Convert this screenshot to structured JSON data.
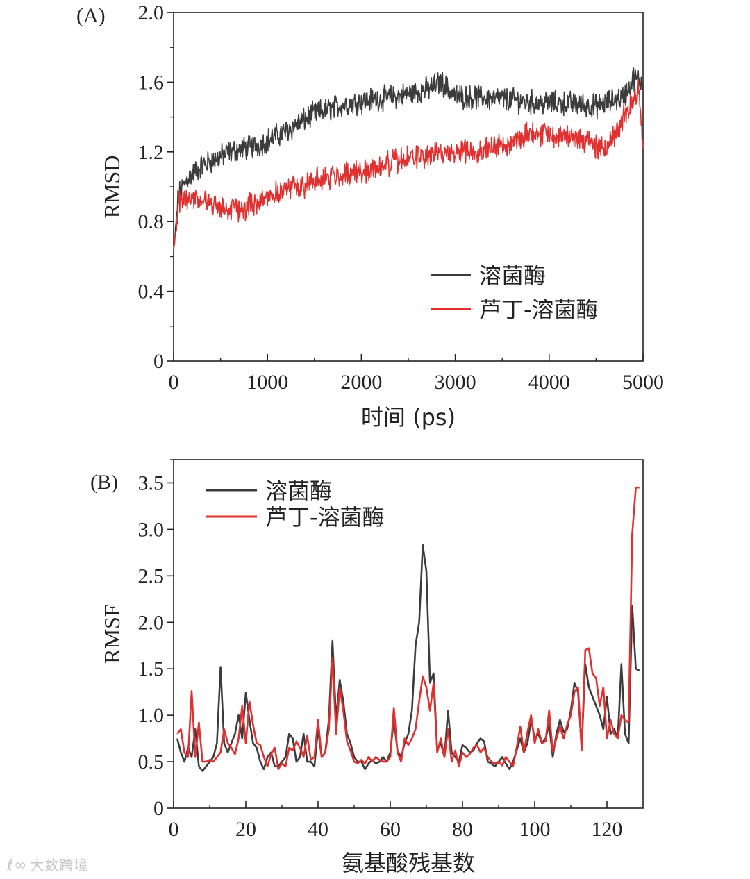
{
  "colors": {
    "black_series": "#3c3c3c",
    "red_series": "#e03030",
    "axis": "#222222"
  },
  "chart_data": [
    {
      "panel": "(A)",
      "type": "line",
      "xlabel": "时间 (ps)",
      "ylabel": "RMSD",
      "xlim": [
        0,
        5000
      ],
      "ylim": [
        0,
        2.0
      ],
      "xticks": [
        0,
        1000,
        2000,
        3000,
        4000,
        5000
      ],
      "xtick_labels": [
        "0",
        "1000",
        "2000",
        "3000",
        "4000",
        "5000"
      ],
      "yticks": [
        0,
        0.4,
        0.8,
        1.2,
        1.6,
        2.0
      ],
      "ytick_labels": [
        "0",
        "0.4",
        "0.8",
        "1.2",
        "1.6",
        "2.0"
      ],
      "legend_position": "lower-right",
      "series": [
        {
          "name": "溶菌酶",
          "color": "#3c3c3c",
          "trend_x": [
            0,
            50,
            150,
            300,
            600,
            900,
            1200,
            1500,
            1800,
            2100,
            2400,
            2700,
            2850,
            3000,
            3300,
            3600,
            3900,
            4200,
            4500,
            4800,
            4900,
            5000
          ],
          "trend_y": [
            0.62,
            0.95,
            1.05,
            1.12,
            1.2,
            1.24,
            1.32,
            1.42,
            1.47,
            1.5,
            1.52,
            1.56,
            1.6,
            1.52,
            1.51,
            1.5,
            1.48,
            1.48,
            1.46,
            1.52,
            1.62,
            1.6
          ],
          "noise": 0.055
        },
        {
          "name": "芦丁-溶菌酶",
          "color": "#e03030",
          "trend_x": [
            0,
            50,
            150,
            300,
            500,
            750,
            1000,
            1300,
            1600,
            1900,
            2100,
            2400,
            2700,
            3000,
            3300,
            3600,
            3800,
            4000,
            4300,
            4600,
            4850,
            4950,
            5000
          ],
          "trend_y": [
            0.62,
            0.9,
            0.95,
            0.92,
            0.88,
            0.87,
            0.95,
            1.0,
            1.05,
            1.08,
            1.1,
            1.15,
            1.18,
            1.2,
            1.22,
            1.25,
            1.32,
            1.3,
            1.28,
            1.22,
            1.45,
            1.55,
            1.2
          ],
          "noise": 0.055
        }
      ]
    },
    {
      "panel": "(B)",
      "type": "line",
      "xlabel": "氨基酸残基数",
      "ylabel": "RMSF",
      "xlim": [
        0,
        130
      ],
      "ylim": [
        0,
        3.75
      ],
      "xticks": [
        0,
        20,
        40,
        60,
        80,
        100,
        120
      ],
      "xtick_labels": [
        "0",
        "20",
        "40",
        "60",
        "80",
        "100",
        "120"
      ],
      "yticks": [
        0,
        0.5,
        1.0,
        1.5,
        2.0,
        2.5,
        3.0,
        3.5
      ],
      "ytick_labels": [
        "0",
        "0.5",
        "1.0",
        "1.5",
        "2.0",
        "2.5",
        "3.0",
        "3.5"
      ],
      "legend_position": "top-left",
      "x": [
        1,
        2,
        3,
        4,
        5,
        6,
        7,
        8,
        9,
        10,
        11,
        12,
        13,
        14,
        15,
        16,
        17,
        18,
        19,
        20,
        21,
        22,
        23,
        24,
        25,
        26,
        27,
        28,
        29,
        30,
        31,
        32,
        33,
        34,
        35,
        36,
        37,
        38,
        39,
        40,
        41,
        42,
        43,
        44,
        45,
        46,
        47,
        48,
        49,
        50,
        51,
        52,
        53,
        54,
        55,
        56,
        57,
        58,
        59,
        60,
        61,
        62,
        63,
        64,
        65,
        66,
        67,
        68,
        69,
        70,
        71,
        72,
        73,
        74,
        75,
        76,
        77,
        78,
        79,
        80,
        81,
        82,
        83,
        84,
        85,
        86,
        87,
        88,
        89,
        90,
        91,
        92,
        93,
        94,
        95,
        96,
        97,
        98,
        99,
        100,
        101,
        102,
        103,
        104,
        105,
        106,
        107,
        108,
        109,
        110,
        111,
        112,
        113,
        114,
        115,
        116,
        117,
        118,
        119,
        120,
        121,
        122,
        123,
        124,
        125,
        126,
        127,
        128,
        129
      ],
      "series": [
        {
          "name": "溶菌酶",
          "color": "#3c3c3c",
          "values": [
            0.75,
            0.6,
            0.5,
            0.65,
            0.55,
            0.85,
            0.45,
            0.4,
            0.45,
            0.5,
            0.55,
            0.7,
            1.52,
            0.7,
            0.6,
            0.7,
            0.8,
            1.0,
            0.75,
            1.24,
            0.95,
            0.7,
            0.65,
            0.5,
            0.42,
            0.55,
            0.6,
            0.45,
            0.45,
            0.5,
            0.55,
            0.8,
            0.75,
            0.5,
            0.55,
            0.8,
            0.5,
            0.5,
            0.45,
            0.85,
            0.55,
            0.6,
            0.95,
            1.8,
            0.95,
            1.38,
            1.15,
            0.8,
            0.7,
            0.55,
            0.5,
            0.5,
            0.42,
            0.48,
            0.52,
            0.48,
            0.5,
            0.55,
            0.5,
            0.6,
            0.95,
            0.62,
            0.55,
            0.7,
            0.8,
            1.05,
            1.75,
            2.0,
            2.83,
            2.55,
            1.35,
            1.45,
            0.62,
            0.7,
            0.55,
            1.05,
            0.6,
            0.55,
            0.5,
            0.68,
            0.65,
            0.6,
            0.62,
            0.7,
            0.75,
            0.72,
            0.5,
            0.48,
            0.45,
            0.5,
            0.55,
            0.48,
            0.42,
            0.5,
            0.62,
            0.75,
            0.6,
            0.7,
            0.95,
            0.75,
            0.8,
            0.7,
            0.75,
            0.9,
            0.55,
            0.8,
            0.95,
            0.82,
            0.85,
            1.05,
            1.35,
            1.25,
            0.65,
            1.55,
            1.3,
            1.2,
            1.1,
            1.0,
            0.85,
            1.2,
            0.8,
            0.85,
            0.75,
            1.55,
            0.8,
            0.7,
            2.18,
            1.5,
            1.48
          ],
          "values_note": "last value repeated to match x length"
        },
        {
          "name": "芦丁-溶菌酶",
          "color": "#e03030",
          "values": [
            0.8,
            0.85,
            0.6,
            0.55,
            1.26,
            0.55,
            0.92,
            0.5,
            0.5,
            0.52,
            0.5,
            0.55,
            0.6,
            0.85,
            0.7,
            0.65,
            0.58,
            0.75,
            1.1,
            0.7,
            1.15,
            0.9,
            0.7,
            0.68,
            0.55,
            0.45,
            0.58,
            0.65,
            0.42,
            0.48,
            0.45,
            0.65,
            0.62,
            0.72,
            0.65,
            0.55,
            0.78,
            0.52,
            0.55,
            0.95,
            0.55,
            0.6,
            0.85,
            1.62,
            0.8,
            1.3,
            1.05,
            0.72,
            0.62,
            0.5,
            0.48,
            0.52,
            0.48,
            0.55,
            0.5,
            0.55,
            0.52,
            0.5,
            0.5,
            0.55,
            1.08,
            0.6,
            0.5,
            0.75,
            0.68,
            0.75,
            0.85,
            1.15,
            1.42,
            1.3,
            1.05,
            1.35,
            0.6,
            0.75,
            0.55,
            0.85,
            0.5,
            0.62,
            0.45,
            0.6,
            0.55,
            0.58,
            0.65,
            0.68,
            0.6,
            0.65,
            0.55,
            0.5,
            0.48,
            0.5,
            0.46,
            0.55,
            0.5,
            0.45,
            0.65,
            0.88,
            0.6,
            0.82,
            1.0,
            0.7,
            0.85,
            0.7,
            0.72,
            1.05,
            0.6,
            0.75,
            0.88,
            0.75,
            0.9,
            1.0,
            1.25,
            1.3,
            0.62,
            1.7,
            1.72,
            1.45,
            1.4,
            1.1,
            1.3,
            0.75,
            0.95,
            0.8,
            0.75,
            1.0,
            0.95,
            0.92,
            2.95,
            3.45,
            3.45
          ],
          "values_note": "last value repeated to match x length"
        }
      ]
    }
  ],
  "watermark": {
    "logo": "ℓ∞",
    "text": "大数跨境"
  }
}
